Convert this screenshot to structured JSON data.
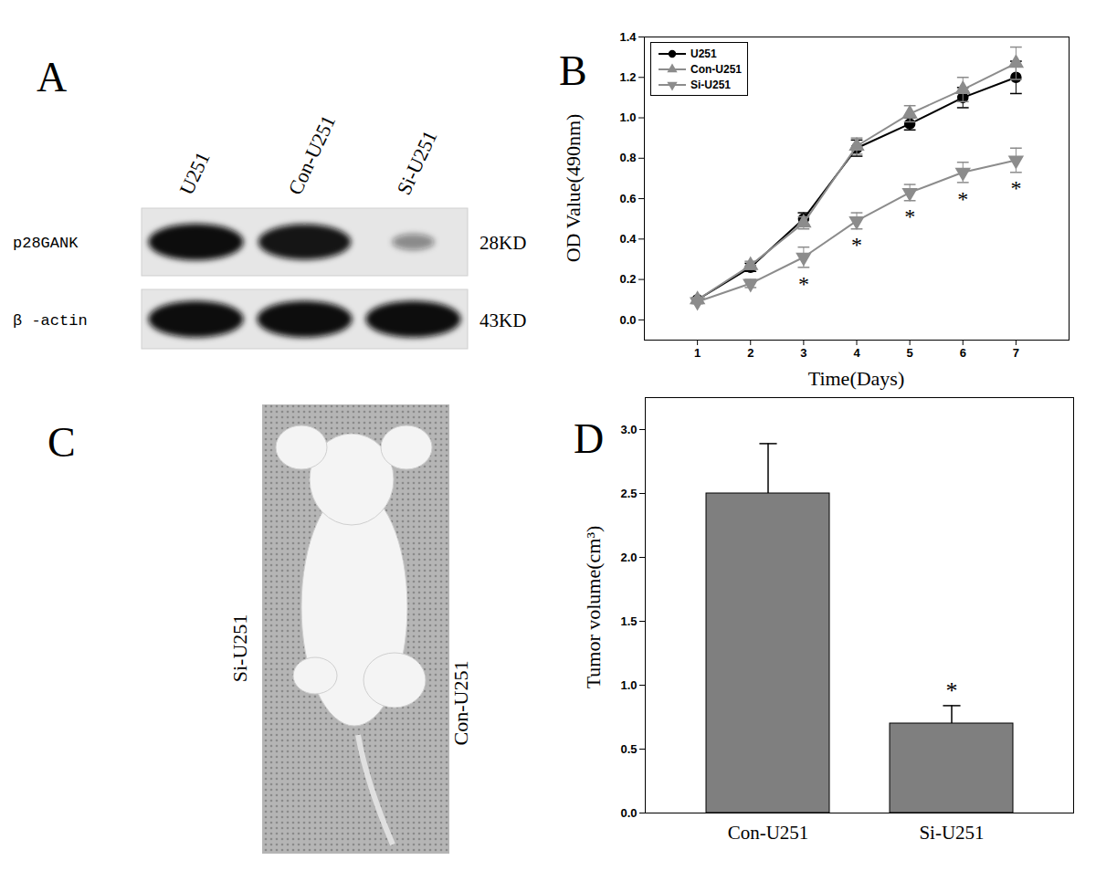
{
  "blot": {
    "title": "A",
    "lanes": [
      "U251",
      "Con-U251",
      "Si-U251"
    ],
    "rows": [
      {
        "label": "p28GANK",
        "size": "28KD",
        "intensity": [
          1,
          0.95,
          0.2
        ]
      },
      {
        "label": "β -actin",
        "size": "43KD",
        "intensity": [
          1,
          1,
          1
        ]
      }
    ]
  },
  "chart_data": [
    {
      "title": "B",
      "type": "line",
      "xlabel": "Time(Days)",
      "ylabel": "OD Value(490nm)",
      "x": [
        1,
        2,
        3,
        4,
        5,
        6,
        7
      ],
      "xlim": [
        0,
        8
      ],
      "xticks": [
        1,
        2,
        3,
        4,
        5,
        6,
        7
      ],
      "ylim": [
        -0.1,
        1.4
      ],
      "yticks": [
        {
          "value": 0,
          "label": "0.0"
        },
        0.2,
        0.4,
        0.6,
        0.8,
        {
          "value": 1,
          "label": "1.0"
        },
        1.2,
        1.4
      ],
      "legend": "upper left",
      "series": [
        {
          "name": "U251",
          "color": "#000000",
          "marker": "circle",
          "values": [
            0.1,
            0.26,
            0.5,
            0.85,
            0.97,
            1.1,
            1.2
          ],
          "errors": [
            0.01,
            0.02,
            0.03,
            0.04,
            0.03,
            0.05,
            0.08
          ]
        },
        {
          "name": "Con-U251",
          "color": "#8c8c8c",
          "marker": "triangle",
          "values": [
            0.1,
            0.27,
            0.48,
            0.86,
            1.02,
            1.14,
            1.27
          ],
          "errors": [
            0.01,
            0.02,
            0.03,
            0.04,
            0.04,
            0.06,
            0.08
          ]
        },
        {
          "name": "Si-U251",
          "color": "#8c8c8c",
          "marker": "triangle-down",
          "values": [
            0.09,
            0.18,
            0.31,
            0.49,
            0.63,
            0.73,
            0.79
          ],
          "errors": [
            0.01,
            0.02,
            0.05,
            0.04,
            0.04,
            0.05,
            0.06
          ],
          "significance": [
            null,
            null,
            "*",
            "*",
            "*",
            "*",
            "*"
          ]
        }
      ]
    },
    {
      "title": "D",
      "type": "bar",
      "ylabel": "Tumor volume(cm³)",
      "categories": [
        "Con-U251",
        "Si-U251"
      ],
      "values": [
        2.5,
        0.7
      ],
      "errors": [
        0.39,
        0.14
      ],
      "significance": [
        null,
        "*"
      ],
      "color": "#7f7f7f",
      "ylim": [
        0,
        3.25
      ],
      "yticks": [
        {
          "value": 0,
          "label": "0.0"
        },
        0.5,
        {
          "value": 1,
          "label": "1.0"
        },
        1.5,
        {
          "value": 2,
          "label": "2.0"
        },
        2.5,
        {
          "value": 3,
          "label": "3.0"
        }
      ]
    }
  ],
  "photo": {
    "title": "C",
    "left_label": "Si-U251",
    "right_label": "Con-U251"
  }
}
